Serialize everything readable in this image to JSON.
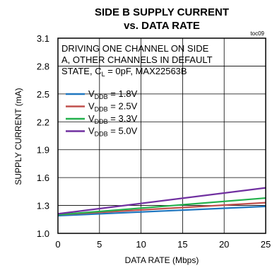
{
  "chart_data": {
    "type": "line",
    "title_line1": "SIDE B SUPPLY CURRENT",
    "title_line2": "vs. DATA RATE",
    "figure_id": "toc09",
    "xlabel": "DATA RATE (Mbps)",
    "ylabel": "SUPPLY CURRENT (mA)",
    "xlim": [
      0,
      25
    ],
    "ylim": [
      1.0,
      3.1
    ],
    "x_ticks": [
      "0",
      "5",
      "10",
      "15",
      "20",
      "25"
    ],
    "y_ticks": [
      "1.0",
      "1.3",
      "1.6",
      "1.9",
      "2.2",
      "2.5",
      "2.8",
      "3.1"
    ],
    "x_tick_values": [
      0,
      5,
      10,
      15,
      20,
      25
    ],
    "y_tick_values": [
      1.0,
      1.3,
      1.6,
      1.9,
      2.2,
      2.5,
      2.8,
      3.1
    ],
    "grid": true,
    "legend_position": "upper-left",
    "annotation": [
      "DRIVING ONE CHANNEL ON SIDE",
      "A, OTHER CHANNELS IN DEFAULT",
      "STATE, C",
      "L",
      " = 0pF, MAX22563B"
    ],
    "series": [
      {
        "name": "VDDB = 1.8V",
        "legend_main": "V",
        "legend_sub": "DDB",
        "legend_rest": " = 1.8V",
        "color": "#1f77c0",
        "x": [
          0,
          25
        ],
        "y": [
          1.19,
          1.29
        ]
      },
      {
        "name": "VDDB = 2.5V",
        "legend_main": "V",
        "legend_sub": "DDB",
        "legend_rest": " = 2.5V",
        "color": "#c0504d",
        "x": [
          0,
          25
        ],
        "y": [
          1.2,
          1.33
        ]
      },
      {
        "name": "VDDB = 3.3V",
        "legend_main": "V",
        "legend_sub": "DDB",
        "legend_rest": " = 3.3V",
        "color": "#22b14c",
        "x": [
          0,
          25
        ],
        "y": [
          1.2,
          1.38
        ]
      },
      {
        "name": "VDDB = 5.0V",
        "legend_main": "V",
        "legend_sub": "DDB",
        "legend_rest": " = 5.0V",
        "color": "#7030a0",
        "x": [
          0,
          25
        ],
        "y": [
          1.21,
          1.49
        ]
      }
    ]
  }
}
